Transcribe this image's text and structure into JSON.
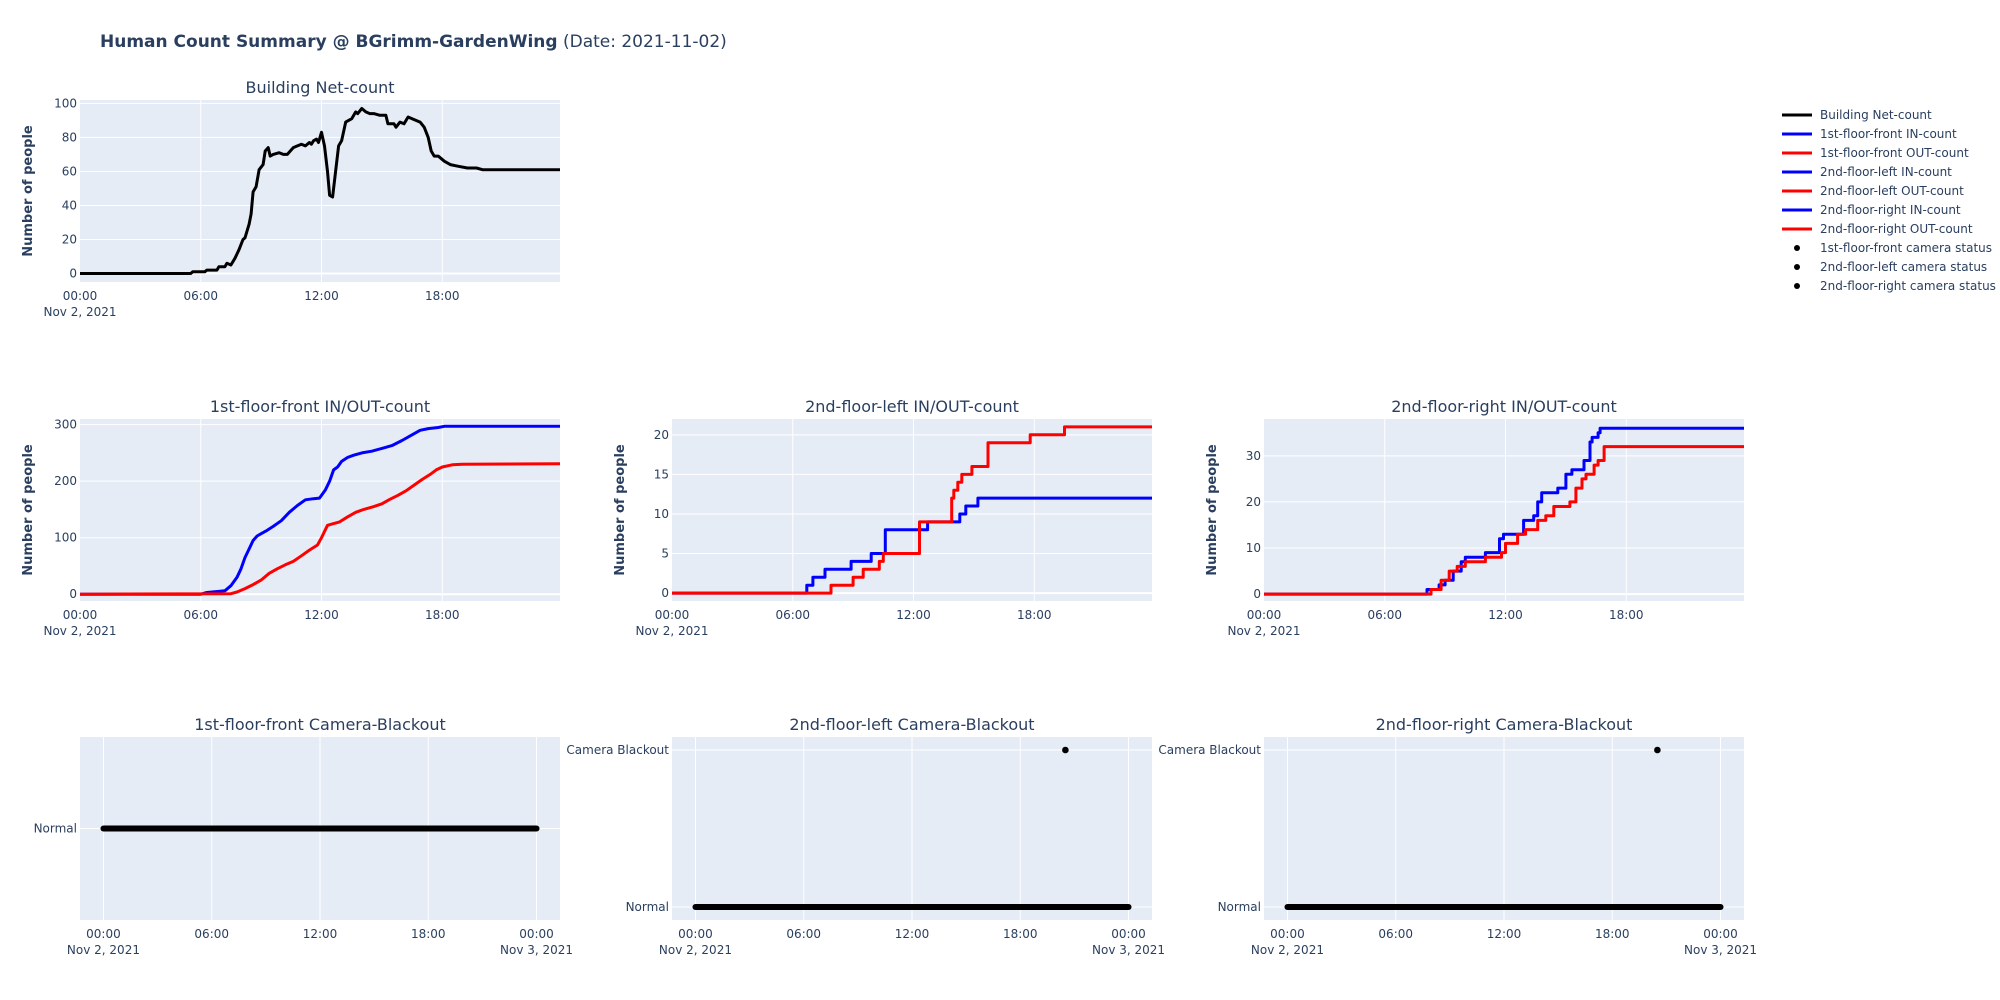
{
  "header": {
    "title_bold": "Human Count Summary @ BGrimm-GardenWing",
    "title_rest": " (Date: 2021-11-02)"
  },
  "colors": {
    "net": "#000000",
    "in": "#0000ff",
    "out": "#ff0000",
    "plot_bg": "#e5ecf6",
    "grid": "#ffffff",
    "text": "#2a3f5f"
  },
  "legend": {
    "placement": "right",
    "items": [
      {
        "label": "Building Net-count",
        "kind": "line",
        "color": "#000000"
      },
      {
        "label": "1st-floor-front IN-count",
        "kind": "line",
        "color": "#0000ff"
      },
      {
        "label": "1st-floor-front OUT-count",
        "kind": "line",
        "color": "#ff0000"
      },
      {
        "label": "2nd-floor-left IN-count",
        "kind": "line",
        "color": "#0000ff"
      },
      {
        "label": "2nd-floor-left OUT-count",
        "kind": "line",
        "color": "#ff0000"
      },
      {
        "label": "2nd-floor-right IN-count",
        "kind": "line",
        "color": "#0000ff"
      },
      {
        "label": "2nd-floor-right OUT-count",
        "kind": "line",
        "color": "#ff0000"
      },
      {
        "label": "1st-floor-front camera status",
        "kind": "marker",
        "color": "#000000"
      },
      {
        "label": "2nd-floor-left camera status",
        "kind": "marker",
        "color": "#000000"
      },
      {
        "label": "2nd-floor-right camera status",
        "kind": "marker",
        "color": "#000000"
      }
    ]
  },
  "chart_data": [
    {
      "id": "net",
      "type": "line",
      "title": "Building Net-count",
      "xlabel": "",
      "ylabel": "Number of people",
      "x_unit": "hours since 2021-11-02 00:00",
      "xlim": [
        0,
        23.85
      ],
      "ylim": [
        -5,
        102
      ],
      "yticks": [
        0,
        20,
        40,
        60,
        80,
        100
      ],
      "xticks": [
        {
          "v": 0,
          "label": "00:00",
          "sub": "Nov 2, 2021"
        },
        {
          "v": 6,
          "label": "06:00"
        },
        {
          "v": 12,
          "label": "12:00"
        },
        {
          "v": 18,
          "label": "18:00"
        }
      ],
      "grid": true,
      "series": [
        {
          "name": "Building Net-count",
          "color": "#000000",
          "x": [
            0,
            5.5,
            5.6,
            6.2,
            6.3,
            6.8,
            6.9,
            7.2,
            7.3,
            7.5,
            7.7,
            7.9,
            8.1,
            8.2,
            8.4,
            8.5,
            8.6,
            8.75,
            8.9,
            9.1,
            9.2,
            9.35,
            9.45,
            9.6,
            9.9,
            10.1,
            10.3,
            10.6,
            10.8,
            11.0,
            11.2,
            11.4,
            11.5,
            11.6,
            11.75,
            11.85,
            12.0,
            12.15,
            12.3,
            12.4,
            12.55,
            12.7,
            12.85,
            13.0,
            13.2,
            13.5,
            13.7,
            13.8,
            14.0,
            14.2,
            14.4,
            14.6,
            14.9,
            15.2,
            15.3,
            15.6,
            15.7,
            15.9,
            16.1,
            16.3,
            16.5,
            16.9,
            17.1,
            17.3,
            17.45,
            17.6,
            17.8,
            17.9,
            18.1,
            18.4,
            18.8,
            19.25,
            19.7,
            20.0,
            23.85
          ],
          "y": [
            0,
            0,
            1,
            1,
            2,
            2,
            4,
            4,
            6,
            5,
            9,
            14,
            20,
            21,
            29,
            35,
            48,
            51,
            61,
            64,
            72,
            74,
            69,
            70,
            71,
            70,
            70,
            74,
            75,
            76,
            75,
            77,
            76,
            78,
            79,
            77,
            83,
            75,
            60,
            46,
            45,
            60,
            75,
            78,
            89,
            91,
            95,
            94,
            97,
            95,
            94,
            94,
            93,
            93,
            88,
            88,
            86,
            89,
            88,
            92,
            91,
            89,
            86,
            80,
            72,
            69,
            69,
            68,
            66,
            64,
            63,
            62,
            62,
            61,
            61
          ]
        }
      ]
    },
    {
      "id": "f1",
      "type": "line",
      "title": "1st-floor-front IN/OUT-count",
      "ylabel": "Number of people",
      "x_unit": "hours since 2021-11-02 00:00",
      "xlim": [
        0,
        23.85
      ],
      "ylim": [
        -12,
        310
      ],
      "yticks": [
        0,
        100,
        200,
        300
      ],
      "xticks": [
        {
          "v": 0,
          "label": "00:00",
          "sub": "Nov 2, 2021"
        },
        {
          "v": 6,
          "label": "06:00"
        },
        {
          "v": 12,
          "label": "12:00"
        },
        {
          "v": 18,
          "label": "18:00"
        }
      ],
      "grid": true,
      "series": [
        {
          "name": "1st-floor-front IN-count",
          "color": "#0000ff",
          "x": [
            0,
            6.0,
            6.3,
            6.9,
            7.2,
            7.5,
            7.8,
            8.0,
            8.2,
            8.4,
            8.6,
            8.8,
            9.0,
            9.3,
            9.6,
            10.0,
            10.4,
            10.8,
            11.2,
            11.6,
            11.9,
            12.2,
            12.4,
            12.6,
            12.8,
            13.0,
            13.3,
            13.6,
            14.0,
            14.5,
            15.0,
            15.5,
            16.0,
            16.5,
            16.9,
            17.3,
            17.8,
            18.1,
            23.85
          ],
          "y": [
            0,
            0,
            3,
            5,
            6,
            15,
            30,
            45,
            65,
            80,
            95,
            103,
            107,
            113,
            120,
            130,
            145,
            157,
            167,
            169,
            170,
            185,
            200,
            220,
            225,
            235,
            242,
            246,
            250,
            253,
            258,
            263,
            272,
            282,
            290,
            293,
            295,
            297,
            297
          ]
        },
        {
          "name": "1st-floor-front OUT-count",
          "color": "#ff0000",
          "x": [
            0,
            7.5,
            7.8,
            8.2,
            8.6,
            9.0,
            9.4,
            9.8,
            10.2,
            10.6,
            11.0,
            11.4,
            11.8,
            12.0,
            12.3,
            12.6,
            12.9,
            13.3,
            13.7,
            14.1,
            14.6,
            15.0,
            15.4,
            15.8,
            16.2,
            16.6,
            17.0,
            17.4,
            17.7,
            18.0,
            18.5,
            19.0,
            23.85
          ],
          "y": [
            0,
            1,
            4,
            10,
            17,
            25,
            37,
            45,
            52,
            58,
            68,
            78,
            87,
            100,
            122,
            125,
            128,
            137,
            145,
            150,
            155,
            160,
            168,
            175,
            183,
            193,
            203,
            212,
            220,
            225,
            229,
            230,
            231
          ]
        }
      ]
    },
    {
      "id": "f2l",
      "type": "line",
      "title": "2nd-floor-left IN/OUT-count",
      "ylabel": "Number of people",
      "x_unit": "hours since 2021-11-02 00:00",
      "xlim": [
        0,
        23.85
      ],
      "ylim": [
        -1,
        22
      ],
      "yticks": [
        0,
        5,
        10,
        15,
        20
      ],
      "xticks": [
        {
          "v": 0,
          "label": "00:00",
          "sub": "Nov 2, 2021"
        },
        {
          "v": 6,
          "label": "06:00"
        },
        {
          "v": 12,
          "label": "12:00"
        },
        {
          "v": 18,
          "label": "18:00"
        }
      ],
      "grid": true,
      "series": [
        {
          "name": "2nd-floor-left IN-count",
          "color": "#0000ff",
          "step": true,
          "x": [
            0,
            6.7,
            7.0,
            7.6,
            8.9,
            9.9,
            10.6,
            12.5,
            12.7,
            13.9,
            14.3,
            14.6,
            15.2,
            23.85
          ],
          "y": [
            0,
            1,
            2,
            3,
            4,
            5,
            8,
            8,
            9,
            9,
            10,
            11,
            12,
            12
          ]
        },
        {
          "name": "2nd-floor-left OUT-count",
          "color": "#ff0000",
          "step": true,
          "x": [
            0,
            7.9,
            9.0,
            9.5,
            10.3,
            10.5,
            10.7,
            12.3,
            13.9,
            14.0,
            14.2,
            14.4,
            14.9,
            15.3,
            15.7,
            17.8,
            19.5,
            23.85
          ],
          "y": [
            0,
            1,
            2,
            3,
            4,
            5,
            5,
            9,
            12,
            13,
            14,
            15,
            16,
            16,
            19,
            20,
            21,
            21
          ]
        }
      ]
    },
    {
      "id": "f2r",
      "type": "line",
      "title": "2nd-floor-right IN/OUT-count",
      "ylabel": "Number of people",
      "x_unit": "hours since 2021-11-02 00:00",
      "xlim": [
        0,
        23.85
      ],
      "ylim": [
        -1.5,
        38
      ],
      "yticks": [
        0,
        10,
        20,
        30
      ],
      "xticks": [
        {
          "v": 0,
          "label": "00:00",
          "sub": "Nov 2, 2021"
        },
        {
          "v": 6,
          "label": "06:00"
        },
        {
          "v": 12,
          "label": "12:00"
        },
        {
          "v": 18,
          "label": "18:00"
        }
      ],
      "grid": true,
      "series": [
        {
          "name": "2nd-floor-right IN-count",
          "color": "#0000ff",
          "step": true,
          "x": [
            0,
            8.1,
            8.7,
            9.0,
            9.4,
            9.8,
            10.0,
            11.0,
            11.7,
            11.9,
            12.3,
            12.9,
            13.4,
            13.6,
            13.8,
            14.2,
            14.6,
            15.0,
            15.1,
            15.3,
            15.6,
            15.9,
            16.2,
            16.3,
            16.6,
            16.7,
            16.9,
            23.85
          ],
          "y": [
            0,
            1,
            2,
            3,
            5,
            7,
            8,
            9,
            12,
            13,
            13,
            16,
            17,
            20,
            22,
            22,
            23,
            26,
            26,
            27,
            27,
            29,
            33,
            34,
            35,
            36,
            36,
            36
          ]
        },
        {
          "name": "2nd-floor-right OUT-count",
          "color": "#ff0000",
          "step": true,
          "x": [
            0,
            8.3,
            8.8,
            9.2,
            9.6,
            10.0,
            11.0,
            11.8,
            12.0,
            12.6,
            13.0,
            13.6,
            14.0,
            14.4,
            14.6,
            15.2,
            15.5,
            15.8,
            16.0,
            16.4,
            16.6,
            16.9,
            23.85
          ],
          "y": [
            0,
            1,
            3,
            5,
            6,
            7,
            8,
            9,
            11,
            13,
            14,
            16,
            17,
            19,
            19,
            20,
            23,
            25,
            26,
            28,
            29,
            32,
            32
          ]
        }
      ]
    },
    {
      "id": "c1",
      "type": "scatter",
      "title": "1st-floor-front Camera-Blackout",
      "x_unit": "hours since 2021-11-02 00:00",
      "xlim": [
        -1.3,
        25.3
      ],
      "categories": [
        "Normal"
      ],
      "xticks": [
        {
          "v": 0,
          "label": "00:00",
          "sub": "Nov 2, 2021"
        },
        {
          "v": 6,
          "label": "06:00"
        },
        {
          "v": 12,
          "label": "12:00"
        },
        {
          "v": 18,
          "label": "18:00"
        },
        {
          "v": 24,
          "label": "00:00",
          "sub": "Nov 3, 2021"
        }
      ],
      "grid": true,
      "normal_range": [
        0,
        24
      ],
      "blackouts": []
    },
    {
      "id": "c2l",
      "type": "scatter",
      "title": "2nd-floor-left Camera-Blackout",
      "x_unit": "hours since 2021-11-02 00:00",
      "xlim": [
        -1.3,
        25.3
      ],
      "categories": [
        "Normal",
        "Camera Blackout"
      ],
      "xticks": [
        {
          "v": 0,
          "label": "00:00",
          "sub": "Nov 2, 2021"
        },
        {
          "v": 6,
          "label": "06:00"
        },
        {
          "v": 12,
          "label": "12:00"
        },
        {
          "v": 18,
          "label": "18:00"
        },
        {
          "v": 24,
          "label": "00:00",
          "sub": "Nov 3, 2021"
        }
      ],
      "grid": true,
      "normal_range": [
        0,
        24
      ],
      "blackouts": [
        20.5
      ]
    },
    {
      "id": "c2r",
      "type": "scatter",
      "title": "2nd-floor-right Camera-Blackout",
      "x_unit": "hours since 2021-11-02 00:00",
      "xlim": [
        -1.3,
        25.3
      ],
      "categories": [
        "Normal",
        "Camera Blackout"
      ],
      "xticks": [
        {
          "v": 0,
          "label": "00:00",
          "sub": "Nov 2, 2021"
        },
        {
          "v": 6,
          "label": "06:00"
        },
        {
          "v": 12,
          "label": "12:00"
        },
        {
          "v": 18,
          "label": "18:00"
        },
        {
          "v": 24,
          "label": "00:00",
          "sub": "Nov 3, 2021"
        }
      ],
      "grid": true,
      "normal_range": [
        0,
        24
      ],
      "blackouts": [
        20.5
      ]
    }
  ]
}
